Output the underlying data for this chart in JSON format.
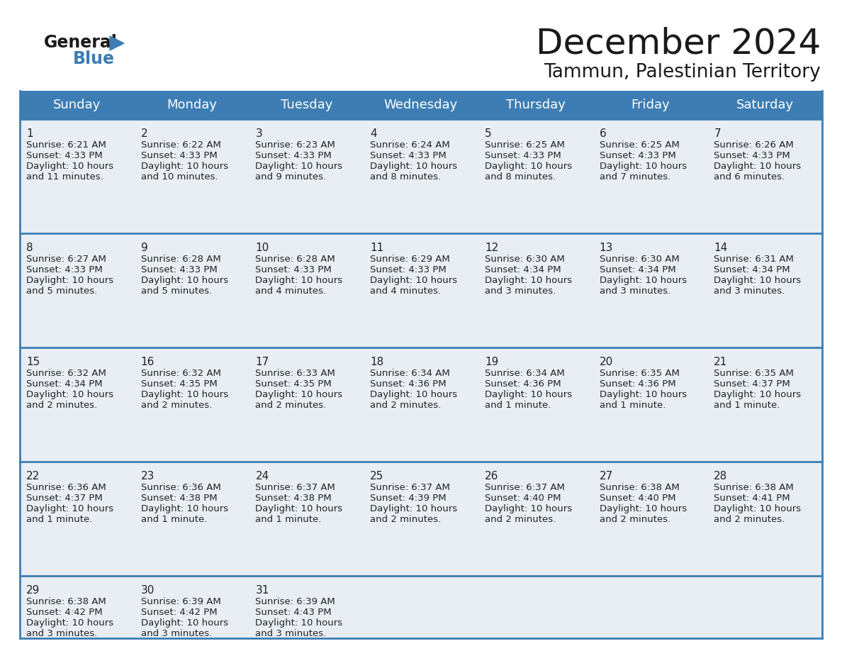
{
  "title": "December 2024",
  "subtitle": "Tammun, Palestinian Territory",
  "days_of_week": [
    "Sunday",
    "Monday",
    "Tuesday",
    "Wednesday",
    "Thursday",
    "Friday",
    "Saturday"
  ],
  "header_bg": "#3d7db3",
  "header_text": "#ffffff",
  "row_bg": "#e8eef4",
  "last_row_bg": "#e8eef4",
  "border_color": "#3d7db3",
  "text_color": "#222222",
  "day_num_color": "#222222",
  "title_color": "#1a1a1a",
  "subtitle_color": "#1a1a1a",
  "calendar_data": [
    [
      {
        "day": 1,
        "sunrise": "6:21 AM",
        "sunset": "4:33 PM",
        "daylight": "10 hours and 11 minutes."
      },
      {
        "day": 2,
        "sunrise": "6:22 AM",
        "sunset": "4:33 PM",
        "daylight": "10 hours and 10 minutes."
      },
      {
        "day": 3,
        "sunrise": "6:23 AM",
        "sunset": "4:33 PM",
        "daylight": "10 hours and 9 minutes."
      },
      {
        "day": 4,
        "sunrise": "6:24 AM",
        "sunset": "4:33 PM",
        "daylight": "10 hours and 8 minutes."
      },
      {
        "day": 5,
        "sunrise": "6:25 AM",
        "sunset": "4:33 PM",
        "daylight": "10 hours and 8 minutes."
      },
      {
        "day": 6,
        "sunrise": "6:25 AM",
        "sunset": "4:33 PM",
        "daylight": "10 hours and 7 minutes."
      },
      {
        "day": 7,
        "sunrise": "6:26 AM",
        "sunset": "4:33 PM",
        "daylight": "10 hours and 6 minutes."
      }
    ],
    [
      {
        "day": 8,
        "sunrise": "6:27 AM",
        "sunset": "4:33 PM",
        "daylight": "10 hours and 5 minutes."
      },
      {
        "day": 9,
        "sunrise": "6:28 AM",
        "sunset": "4:33 PM",
        "daylight": "10 hours and 5 minutes."
      },
      {
        "day": 10,
        "sunrise": "6:28 AM",
        "sunset": "4:33 PM",
        "daylight": "10 hours and 4 minutes."
      },
      {
        "day": 11,
        "sunrise": "6:29 AM",
        "sunset": "4:33 PM",
        "daylight": "10 hours and 4 minutes."
      },
      {
        "day": 12,
        "sunrise": "6:30 AM",
        "sunset": "4:34 PM",
        "daylight": "10 hours and 3 minutes."
      },
      {
        "day": 13,
        "sunrise": "6:30 AM",
        "sunset": "4:34 PM",
        "daylight": "10 hours and 3 minutes."
      },
      {
        "day": 14,
        "sunrise": "6:31 AM",
        "sunset": "4:34 PM",
        "daylight": "10 hours and 3 minutes."
      }
    ],
    [
      {
        "day": 15,
        "sunrise": "6:32 AM",
        "sunset": "4:34 PM",
        "daylight": "10 hours and 2 minutes."
      },
      {
        "day": 16,
        "sunrise": "6:32 AM",
        "sunset": "4:35 PM",
        "daylight": "10 hours and 2 minutes."
      },
      {
        "day": 17,
        "sunrise": "6:33 AM",
        "sunset": "4:35 PM",
        "daylight": "10 hours and 2 minutes."
      },
      {
        "day": 18,
        "sunrise": "6:34 AM",
        "sunset": "4:36 PM",
        "daylight": "10 hours and 2 minutes."
      },
      {
        "day": 19,
        "sunrise": "6:34 AM",
        "sunset": "4:36 PM",
        "daylight": "10 hours and 1 minute."
      },
      {
        "day": 20,
        "sunrise": "6:35 AM",
        "sunset": "4:36 PM",
        "daylight": "10 hours and 1 minute."
      },
      {
        "day": 21,
        "sunrise": "6:35 AM",
        "sunset": "4:37 PM",
        "daylight": "10 hours and 1 minute."
      }
    ],
    [
      {
        "day": 22,
        "sunrise": "6:36 AM",
        "sunset": "4:37 PM",
        "daylight": "10 hours and 1 minute."
      },
      {
        "day": 23,
        "sunrise": "6:36 AM",
        "sunset": "4:38 PM",
        "daylight": "10 hours and 1 minute."
      },
      {
        "day": 24,
        "sunrise": "6:37 AM",
        "sunset": "4:38 PM",
        "daylight": "10 hours and 1 minute."
      },
      {
        "day": 25,
        "sunrise": "6:37 AM",
        "sunset": "4:39 PM",
        "daylight": "10 hours and 2 minutes."
      },
      {
        "day": 26,
        "sunrise": "6:37 AM",
        "sunset": "4:40 PM",
        "daylight": "10 hours and 2 minutes."
      },
      {
        "day": 27,
        "sunrise": "6:38 AM",
        "sunset": "4:40 PM",
        "daylight": "10 hours and 2 minutes."
      },
      {
        "day": 28,
        "sunrise": "6:38 AM",
        "sunset": "4:41 PM",
        "daylight": "10 hours and 2 minutes."
      }
    ],
    [
      {
        "day": 29,
        "sunrise": "6:38 AM",
        "sunset": "4:42 PM",
        "daylight": "10 hours and 3 minutes."
      },
      {
        "day": 30,
        "sunrise": "6:39 AM",
        "sunset": "4:42 PM",
        "daylight": "10 hours and 3 minutes."
      },
      {
        "day": 31,
        "sunrise": "6:39 AM",
        "sunset": "4:43 PM",
        "daylight": "10 hours and 3 minutes."
      },
      null,
      null,
      null,
      null
    ]
  ]
}
